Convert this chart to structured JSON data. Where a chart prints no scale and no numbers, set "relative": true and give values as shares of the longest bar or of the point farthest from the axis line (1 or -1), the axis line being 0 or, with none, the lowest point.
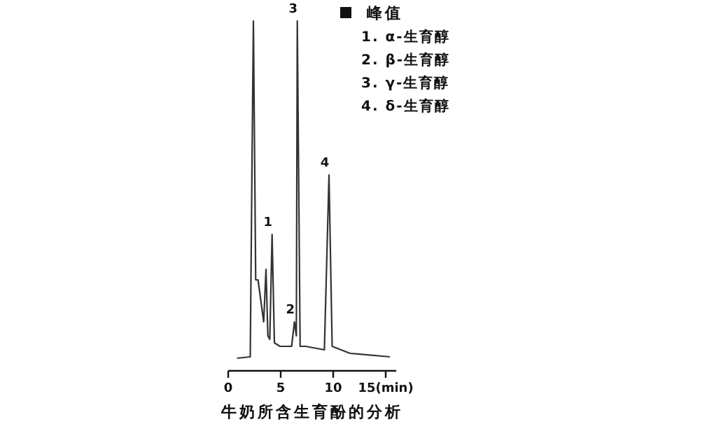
{
  "chart_data": {
    "type": "line",
    "relative": true,
    "xlabel": "牛奶所含生育酚的分析",
    "xlim": [
      0,
      16
    ],
    "xticks": [
      0,
      5,
      10,
      {
        "value": 15,
        "label": "15(min)"
      }
    ],
    "x": [
      0.84,
      2.1,
      2.27,
      2.4,
      2.62,
      2.84,
      3.38,
      3.6,
      3.78,
      3.96,
      4.18,
      4.4,
      4.93,
      6.04,
      6.31,
      6.49,
      6.58,
      6.85,
      7.38,
      9.16,
      9.6,
      9.9,
      11.6,
      15.4
    ],
    "series": [
      {
        "color": "#333333",
        "values": [
          0.036,
          0.04,
          0.6,
          1.0,
          0.26,
          0.26,
          0.14,
          0.29,
          0.1,
          0.09,
          0.39,
          0.08,
          0.07,
          0.07,
          0.14,
          0.1,
          1.0,
          0.07,
          0.07,
          0.06,
          0.56,
          0.07,
          0.05,
          0.04
        ]
      }
    ],
    "annotations": [
      "峰值",
      "1. α-生育醇",
      "2. β-生育醇",
      "3. γ-生育醇",
      "4. δ-生育醇",
      {
        "text": "1",
        "x": 4.18,
        "y": 0.39
      },
      {
        "text": "2",
        "x": 6.31,
        "y": 0.14
      },
      {
        "text": "3",
        "x": 6.58,
        "y": 1.0
      },
      {
        "text": "4",
        "x": 9.6,
        "y": 0.56
      }
    ]
  }
}
